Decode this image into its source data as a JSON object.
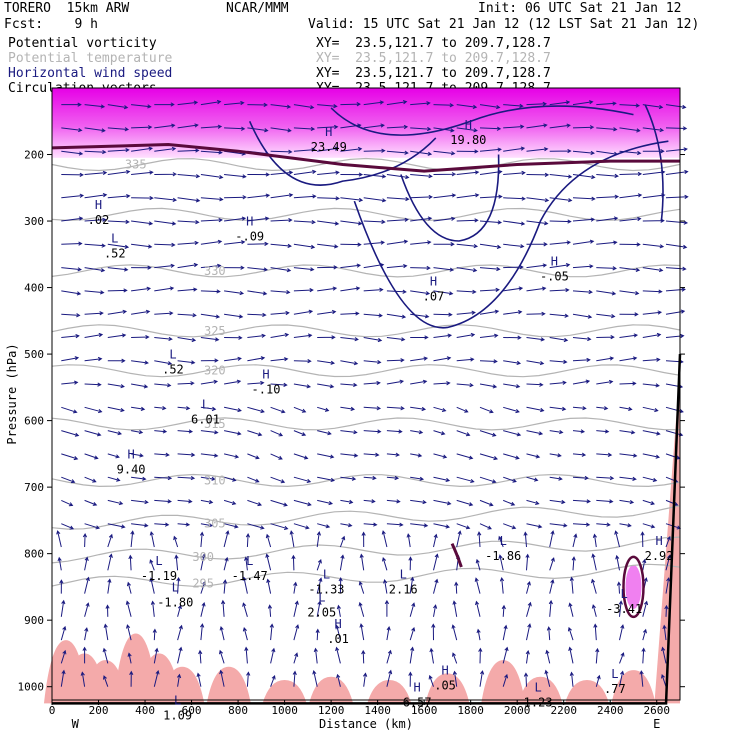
{
  "header": {
    "model": "TORERO  15km ARW",
    "org": "NCAR/MMM",
    "init": "Init: 06 UTC Sat 21 Jan 12",
    "fcst": "Fcst:    9 h",
    "valid": "Valid: 15 UTC Sat 21 Jan 12 (12 LST Sat 21 Jan 12)",
    "fields": [
      {
        "name": "Potential vorticity",
        "xy": "XY=  23.5,121.7 to 209.7,128.7",
        "color": "#000000"
      },
      {
        "name": "Potential temperature",
        "xy": "XY=  23.5,121.7 to 209.7,128.7",
        "color": "#b4b4b4"
      },
      {
        "name": "Horizontal wind speed",
        "xy": "XY=  23.5,121.7 to 209.7,128.7",
        "color": "#1a1a80"
      },
      {
        "name": "Circulation vectors",
        "xy": "XY=  23.5,121.7 to 209.7,128.7",
        "color": "#000000"
      }
    ]
  },
  "colors": {
    "wind": "#1a1a80",
    "theta": "#b4b4b4",
    "pv_fill_high": "#e600e6",
    "pv_fill_low": "#f4aaaa",
    "pv_contour": "#5a0a3c"
  },
  "chart_data": {
    "type": "cross-section",
    "xlabel": "Distance (km)",
    "ylabel": "Pressure (hPa)",
    "x_ticks": [
      0,
      200,
      400,
      600,
      800,
      1000,
      1200,
      1400,
      1600,
      1800,
      2000,
      2200,
      2400,
      2600
    ],
    "y_ticks": [
      200,
      300,
      400,
      500,
      600,
      700,
      800,
      900,
      1000
    ],
    "xlim": [
      0,
      2700
    ],
    "ylim": [
      1020,
      100
    ],
    "x_end_labels": {
      "left": "W",
      "right": "E"
    },
    "theta_levels": [
      {
        "label": "325",
        "x": 700,
        "p": 465
      },
      {
        "label": "320",
        "x": 700,
        "p": 525
      },
      {
        "label": "315",
        "x": 700,
        "p": 605
      },
      {
        "label": "310",
        "x": 700,
        "p": 690
      },
      {
        "label": "305",
        "x": 700,
        "p": 755
      },
      {
        "label": "300",
        "x": 650,
        "p": 805
      },
      {
        "label": "295",
        "x": 650,
        "p": 845
      },
      {
        "label": "330",
        "x": 700,
        "p": 375
      },
      {
        "label": "335",
        "x": 360,
        "p": 215
      }
    ],
    "extrema": [
      {
        "type": "H",
        "value": ".02",
        "x": 200,
        "p": 285
      },
      {
        "type": "L",
        "value": ".52",
        "x": 270,
        "p": 335
      },
      {
        "type": "H",
        "value": "-.09",
        "x": 850,
        "p": 310
      },
      {
        "type": "H",
        "value": "23.49",
        "x": 1190,
        "p": 175
      },
      {
        "type": "H",
        "value": "19.80",
        "x": 1790,
        "p": 165
      },
      {
        "type": "H",
        "value": ".07",
        "x": 1640,
        "p": 400
      },
      {
        "type": "H",
        "value": "-.05",
        "x": 2160,
        "p": 370
      },
      {
        "type": "L",
        "value": ".52",
        "x": 520,
        "p": 510
      },
      {
        "type": "H",
        "value": "-.10",
        "x": 920,
        "p": 540
      },
      {
        "type": "L",
        "value": "6.01",
        "x": 660,
        "p": 585
      },
      {
        "type": "H",
        "value": "9.40",
        "x": 340,
        "p": 660
      },
      {
        "type": "L",
        "value": "-1.19",
        "x": 460,
        "p": 820
      },
      {
        "type": "L",
        "value": "-1.47",
        "x": 850,
        "p": 820
      },
      {
        "type": "L",
        "value": "-1.80",
        "x": 530,
        "p": 860
      },
      {
        "type": "L",
        "value": "-1.33",
        "x": 1180,
        "p": 840
      },
      {
        "type": "L",
        "value": "2.05",
        "x": 1160,
        "p": 875
      },
      {
        "type": "H",
        "value": ".01",
        "x": 1230,
        "p": 915
      },
      {
        "type": "L",
        "value": "2.16",
        "x": 1510,
        "p": 840
      },
      {
        "type": "L",
        "value": "-1.86",
        "x": 1940,
        "p": 790
      },
      {
        "type": "H",
        "value": ".05",
        "x": 1690,
        "p": 985
      },
      {
        "type": "H",
        "value": "6.57",
        "x": 1570,
        "p": 1010
      },
      {
        "type": "L",
        "value": "1.23",
        "x": 2090,
        "p": 1010
      },
      {
        "type": "L",
        "value": "-3.41",
        "x": 2460,
        "p": 870
      },
      {
        "type": "H",
        "value": "2.92",
        "x": 2610,
        "p": 790
      },
      {
        "type": "L",
        "value": ".77",
        "x": 2420,
        "p": 990
      },
      {
        "type": "L",
        "value": "1.09",
        "x": 540,
        "p": 1030
      }
    ]
  }
}
